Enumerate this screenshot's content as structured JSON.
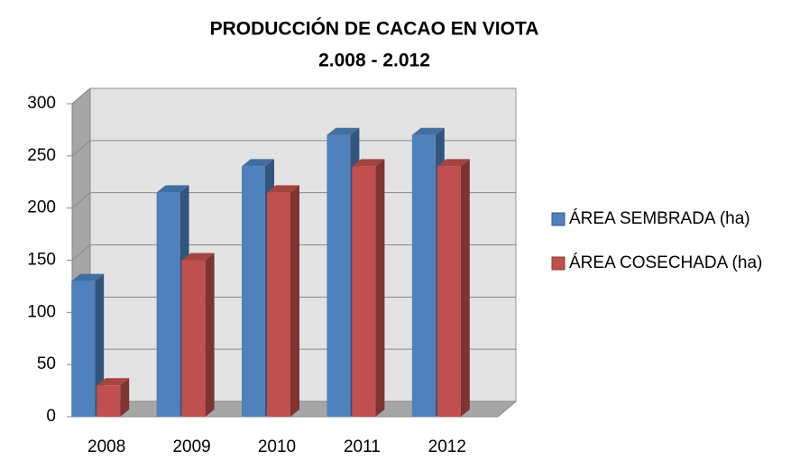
{
  "chart_data": {
    "type": "bar3d",
    "title": "PRODUCCIÓN DE CACAO  EN VIOTA",
    "subtitle": "2.008 - 2.012",
    "categories": [
      "2008",
      "2009",
      "2010",
      "2011",
      "2012"
    ],
    "series": [
      {
        "name": "ÁREA SEMBRADA (ha)",
        "color": "#4f81bd",
        "values": [
          130,
          215,
          240,
          270,
          270
        ]
      },
      {
        "name": "ÁREA COSECHADA (ha)",
        "color": "#c0504d",
        "values": [
          30,
          150,
          215,
          240,
          240
        ]
      }
    ],
    "ylim": [
      0,
      300
    ],
    "yticks": [
      0,
      50,
      100,
      150,
      200,
      250,
      300
    ],
    "grid": true,
    "legend": "right"
  }
}
